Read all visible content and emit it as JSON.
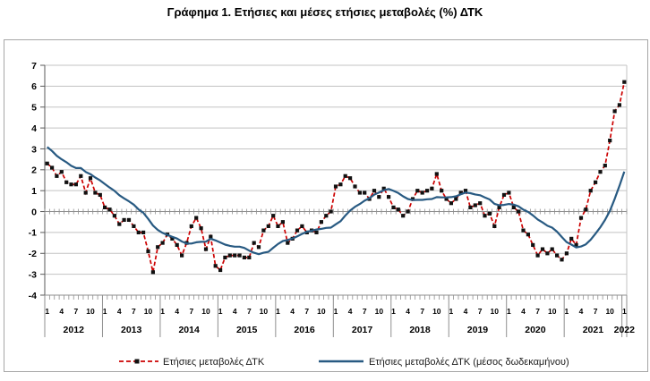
{
  "title": "Γράφημα 1. Ετήσιες και μέσες ετήσιες μεταβολές (%) ΔΤΚ",
  "colors": {
    "annual": "#CC0000",
    "annual_marker": "#111111",
    "average": "#285A82",
    "grid": "#C3C3C3",
    "zero_line": "#8F8F8F",
    "axis": "#595959",
    "tick": "#8F8F8F",
    "outer_box": "#A6A6A6"
  },
  "chart_data": {
    "type": "line",
    "title": "Γράφημα 1. Ετήσιες και μέσες ετήσιες μεταβολές (%) ΔΤΚ",
    "x": {
      "start": "2012-01",
      "end": "2022-01",
      "frequency": "monthly",
      "points": 121
    },
    "years": [
      "2012",
      "2013",
      "2014",
      "2015",
      "2016",
      "2017",
      "2018",
      "2019",
      "2020",
      "2021",
      "2022"
    ],
    "month_tick_labels": [
      "1",
      "4",
      "7",
      "10"
    ],
    "ylim": [
      -4,
      7
    ],
    "y_ticks": [
      7,
      6,
      5,
      4,
      3,
      2,
      1,
      0,
      -1,
      -2,
      -3,
      -4
    ],
    "grid": true,
    "legend_position": "bottom",
    "series": [
      {
        "name": "Ετήσιες μεταβολές ΔΤΚ",
        "color": "#CC0000",
        "style": "dashed",
        "marker": "black-square",
        "values": [
          2.3,
          2.1,
          1.7,
          1.9,
          1.4,
          1.3,
          1.3,
          1.7,
          0.9,
          1.6,
          0.9,
          0.8,
          0.2,
          0.1,
          -0.2,
          -0.6,
          -0.4,
          -0.4,
          -0.7,
          -1.0,
          -1.0,
          -1.9,
          -2.9,
          -1.7,
          -1.5,
          -1.1,
          -1.3,
          -1.6,
          -2.1,
          -1.5,
          -0.7,
          -0.3,
          -0.8,
          -1.8,
          -1.2,
          -2.6,
          -2.8,
          -2.2,
          -2.1,
          -2.1,
          -2.1,
          -2.2,
          -2.2,
          -1.5,
          -1.7,
          -0.9,
          -0.7,
          -0.2,
          -0.7,
          -0.5,
          -1.5,
          -1.3,
          -0.9,
          -0.7,
          -1.0,
          -0.9,
          -1.0,
          -0.5,
          -0.2,
          0.0,
          1.2,
          1.3,
          1.7,
          1.6,
          1.2,
          0.9,
          0.9,
          0.6,
          1.0,
          0.7,
          1.1,
          0.7,
          0.2,
          0.1,
          -0.2,
          0.0,
          0.6,
          1.0,
          0.9,
          1.0,
          1.1,
          1.8,
          1.0,
          0.6,
          0.4,
          0.6,
          0.9,
          1.0,
          0.2,
          0.3,
          0.4,
          -0.2,
          -0.1,
          -0.7,
          0.2,
          0.8,
          0.9,
          0.2,
          0.0,
          -0.9,
          -1.1,
          -1.6,
          -2.1,
          -1.8,
          -2.0,
          -1.8,
          -2.1,
          -2.3,
          -2.0,
          -1.3,
          -1.6,
          -0.3,
          0.1,
          1.0,
          1.4,
          1.9,
          2.2,
          3.4,
          4.8,
          5.1,
          6.2
        ]
      },
      {
        "name": "Ετήσιες μεταβολές ΔΤΚ (μέσος δωδεκαμήνου)",
        "color": "#285A82",
        "style": "solid",
        "marker": "none",
        "values": [
          3.09,
          2.9,
          2.67,
          2.5,
          2.36,
          2.19,
          2.08,
          2.08,
          1.9,
          1.79,
          1.63,
          1.49,
          1.32,
          1.15,
          0.99,
          0.78,
          0.63,
          0.49,
          0.33,
          0.1,
          -0.06,
          -0.35,
          -0.67,
          -0.88,
          -1.02,
          -1.12,
          -1.21,
          -1.29,
          -1.43,
          -1.53,
          -1.53,
          -1.47,
          -1.45,
          -1.44,
          -1.3,
          -1.38,
          -1.48,
          -1.58,
          -1.64,
          -1.68,
          -1.68,
          -1.74,
          -1.87,
          -1.97,
          -2.04,
          -1.97,
          -1.93,
          -1.73,
          -1.55,
          -1.41,
          -1.36,
          -1.29,
          -1.19,
          -1.07,
          -0.97,
          -0.92,
          -0.86,
          -0.83,
          -0.78,
          -0.77,
          -0.61,
          -0.46,
          -0.19,
          0.05,
          0.23,
          0.36,
          0.52,
          0.64,
          0.81,
          0.91,
          1.02,
          1.08,
          0.99,
          0.89,
          0.73,
          0.6,
          0.55,
          0.56,
          0.56,
          0.59,
          0.6,
          0.69,
          0.68,
          0.68,
          0.69,
          0.73,
          0.83,
          0.91,
          0.88,
          0.82,
          0.78,
          0.68,
          0.58,
          0.37,
          0.3,
          0.32,
          0.36,
          0.33,
          0.25,
          0.09,
          -0.02,
          -0.18,
          -0.38,
          -0.52,
          -0.68,
          -0.77,
          -0.96,
          -1.22,
          -1.46,
          -1.58,
          -1.72,
          -1.67,
          -1.57,
          -1.35,
          -1.06,
          -0.75,
          -0.4,
          0.03,
          0.61,
          1.23,
          1.91
        ]
      }
    ]
  }
}
